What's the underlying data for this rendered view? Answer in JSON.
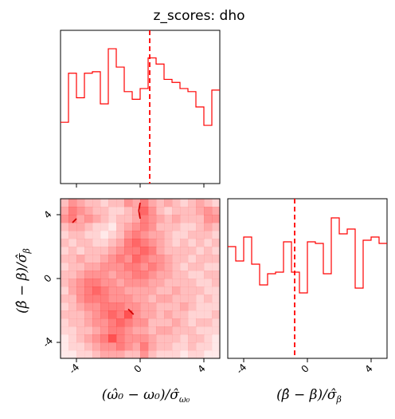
{
  "figure": {
    "title": "z_scores: dho",
    "accent_color": "#ff0000"
  },
  "chart_data": [
    {
      "type": "histogram",
      "panel": "top-left",
      "variable": "omega",
      "xlim": [
        -5,
        5
      ],
      "bin_edges": [
        -5,
        -4.5,
        -4,
        -3.5,
        -3,
        -2.5,
        -2,
        -1.5,
        -1,
        -0.5,
        0,
        0.5,
        1,
        1.5,
        2,
        2.5,
        3,
        3.5,
        4,
        4.5,
        5
      ],
      "counts": [
        40,
        72,
        56,
        72,
        73,
        52,
        88,
        76,
        60,
        55,
        62,
        82,
        78,
        68,
        66,
        62,
        60,
        50,
        38,
        61
      ],
      "ylim": [
        0,
        100
      ],
      "reference_line": 0.6,
      "xticks": [
        -4,
        0,
        4
      ]
    },
    {
      "type": "histogram",
      "panel": "bottom-right",
      "variable": "beta",
      "xlabel": "$(\\hat{\\beta}-\\beta)/\\hat{\\sigma}_\\beta$",
      "xlim": [
        -5,
        5
      ],
      "bin_edges": [
        -5,
        -4.5,
        -4,
        -3.5,
        -3,
        -2.5,
        -2,
        -1.5,
        -1,
        -0.5,
        0,
        0.5,
        1,
        1.5,
        2,
        2.5,
        3,
        3.5,
        4,
        4.5,
        5
      ],
      "counts": [
        70,
        61,
        76,
        59,
        46,
        53,
        54,
        73,
        54,
        41,
        73,
        72,
        53,
        88,
        78,
        81,
        44,
        74,
        76,
        72
      ],
      "ylim": [
        0,
        100
      ],
      "reference_line": -0.8,
      "xticks": [
        -4,
        0,
        4
      ],
      "xtick_labels": [
        "-4",
        "0",
        "4"
      ]
    },
    {
      "type": "heatmap",
      "panel": "bottom-left",
      "xlabel": "$(\\hat{\\omega}_0-\\omega_0)/\\hat{\\sigma}_{\\omega_0}$",
      "ylabel": "$(\\hat{\\beta}-\\beta)/\\hat{\\sigma}_\\beta$",
      "xlim": [
        -5,
        5
      ],
      "ylim": [
        -5,
        5
      ],
      "xticks": [
        -4,
        0,
        4
      ],
      "yticks": [
        -4,
        0,
        4
      ],
      "xtick_labels": [
        "-4",
        "0",
        "4"
      ],
      "ytick_labels": [
        "-4",
        "0",
        "4"
      ],
      "grid_shape": [
        20,
        20
      ],
      "density_rows_top_to_bottom": [
        [
          0.3,
          0.5,
          0.4,
          0.3,
          0.3,
          0.2,
          0.3,
          0.3,
          0.5,
          0.4,
          0.6,
          0.4,
          0.3,
          0.4,
          0.3,
          0.2,
          0.3,
          0.4,
          0.3,
          0.2
        ],
        [
          0.4,
          0.6,
          0.5,
          0.4,
          0.3,
          0.3,
          0.2,
          0.2,
          0.3,
          0.4,
          0.7,
          0.5,
          0.3,
          0.2,
          0.3,
          0.3,
          0.3,
          0.4,
          0.5,
          0.4
        ],
        [
          0.5,
          0.6,
          0.4,
          0.5,
          0.4,
          0.3,
          0.2,
          0.3,
          0.3,
          0.4,
          0.6,
          0.5,
          0.4,
          0.3,
          0.4,
          0.3,
          0.3,
          0.3,
          0.5,
          0.5
        ],
        [
          0.3,
          0.4,
          0.4,
          0.3,
          0.2,
          0.2,
          0.1,
          0.3,
          0.4,
          0.5,
          0.6,
          0.5,
          0.3,
          0.3,
          0.3,
          0.2,
          0.2,
          0.3,
          0.4,
          0.3
        ],
        [
          0.2,
          0.3,
          0.3,
          0.2,
          0.2,
          0.1,
          0.2,
          0.3,
          0.5,
          0.6,
          0.5,
          0.4,
          0.4,
          0.3,
          0.2,
          0.2,
          0.3,
          0.3,
          0.3,
          0.2
        ],
        [
          0.3,
          0.2,
          0.3,
          0.3,
          0.2,
          0.2,
          0.3,
          0.4,
          0.6,
          0.7,
          0.6,
          0.5,
          0.4,
          0.3,
          0.2,
          0.3,
          0.2,
          0.3,
          0.2,
          0.3
        ],
        [
          0.2,
          0.3,
          0.2,
          0.3,
          0.3,
          0.3,
          0.4,
          0.5,
          0.6,
          0.6,
          0.7,
          0.6,
          0.4,
          0.3,
          0.3,
          0.3,
          0.3,
          0.2,
          0.3,
          0.2
        ],
        [
          0.3,
          0.3,
          0.4,
          0.3,
          0.3,
          0.4,
          0.5,
          0.6,
          0.5,
          0.7,
          0.6,
          0.5,
          0.5,
          0.4,
          0.3,
          0.3,
          0.2,
          0.3,
          0.3,
          0.3
        ],
        [
          0.2,
          0.3,
          0.3,
          0.4,
          0.4,
          0.5,
          0.5,
          0.5,
          0.6,
          0.6,
          0.5,
          0.6,
          0.5,
          0.4,
          0.3,
          0.2,
          0.3,
          0.3,
          0.2,
          0.2
        ],
        [
          0.3,
          0.3,
          0.4,
          0.5,
          0.5,
          0.5,
          0.4,
          0.5,
          0.5,
          0.6,
          0.6,
          0.5,
          0.4,
          0.4,
          0.3,
          0.3,
          0.2,
          0.2,
          0.3,
          0.3
        ],
        [
          0.3,
          0.4,
          0.5,
          0.6,
          0.6,
          0.5,
          0.5,
          0.4,
          0.5,
          0.5,
          0.5,
          0.4,
          0.4,
          0.3,
          0.3,
          0.3,
          0.3,
          0.2,
          0.2,
          0.3
        ],
        [
          0.2,
          0.4,
          0.5,
          0.6,
          0.7,
          0.6,
          0.5,
          0.5,
          0.4,
          0.4,
          0.4,
          0.4,
          0.3,
          0.3,
          0.4,
          0.3,
          0.3,
          0.3,
          0.2,
          0.2
        ],
        [
          0.3,
          0.3,
          0.5,
          0.6,
          0.6,
          0.6,
          0.5,
          0.5,
          0.5,
          0.4,
          0.4,
          0.3,
          0.4,
          0.4,
          0.3,
          0.3,
          0.3,
          0.2,
          0.3,
          0.2
        ],
        [
          0.2,
          0.3,
          0.4,
          0.5,
          0.5,
          0.6,
          0.6,
          0.6,
          0.5,
          0.5,
          0.4,
          0.4,
          0.3,
          0.3,
          0.3,
          0.4,
          0.3,
          0.2,
          0.2,
          0.2
        ],
        [
          0.3,
          0.3,
          0.3,
          0.4,
          0.5,
          0.6,
          0.7,
          0.6,
          0.8,
          0.5,
          0.4,
          0.4,
          0.3,
          0.4,
          0.3,
          0.3,
          0.2,
          0.2,
          0.2,
          0.3
        ],
        [
          0.2,
          0.3,
          0.3,
          0.4,
          0.5,
          0.5,
          0.6,
          0.7,
          0.6,
          0.5,
          0.5,
          0.3,
          0.3,
          0.3,
          0.4,
          0.3,
          0.2,
          0.3,
          0.3,
          0.2
        ],
        [
          0.2,
          0.2,
          0.3,
          0.3,
          0.4,
          0.5,
          0.6,
          0.6,
          0.5,
          0.4,
          0.4,
          0.3,
          0.4,
          0.4,
          0.3,
          0.3,
          0.3,
          0.2,
          0.2,
          0.2
        ],
        [
          0.1,
          0.2,
          0.3,
          0.4,
          0.5,
          0.6,
          0.8,
          0.6,
          0.5,
          0.5,
          0.5,
          0.4,
          0.3,
          0.3,
          0.3,
          0.2,
          0.3,
          0.3,
          0.2,
          0.1
        ],
        [
          0.1,
          0.2,
          0.2,
          0.3,
          0.4,
          0.5,
          0.5,
          0.6,
          0.5,
          0.4,
          0.6,
          0.4,
          0.3,
          0.3,
          0.2,
          0.2,
          0.3,
          0.2,
          0.2,
          0.1
        ],
        [
          0.1,
          0.1,
          0.2,
          0.2,
          0.3,
          0.4,
          0.4,
          0.4,
          0.3,
          0.3,
          0.5,
          0.3,
          0.2,
          0.2,
          0.2,
          0.1,
          0.2,
          0.2,
          0.1,
          0.1
        ]
      ],
      "contour_levels": [
        0.5,
        0.6
      ]
    }
  ]
}
